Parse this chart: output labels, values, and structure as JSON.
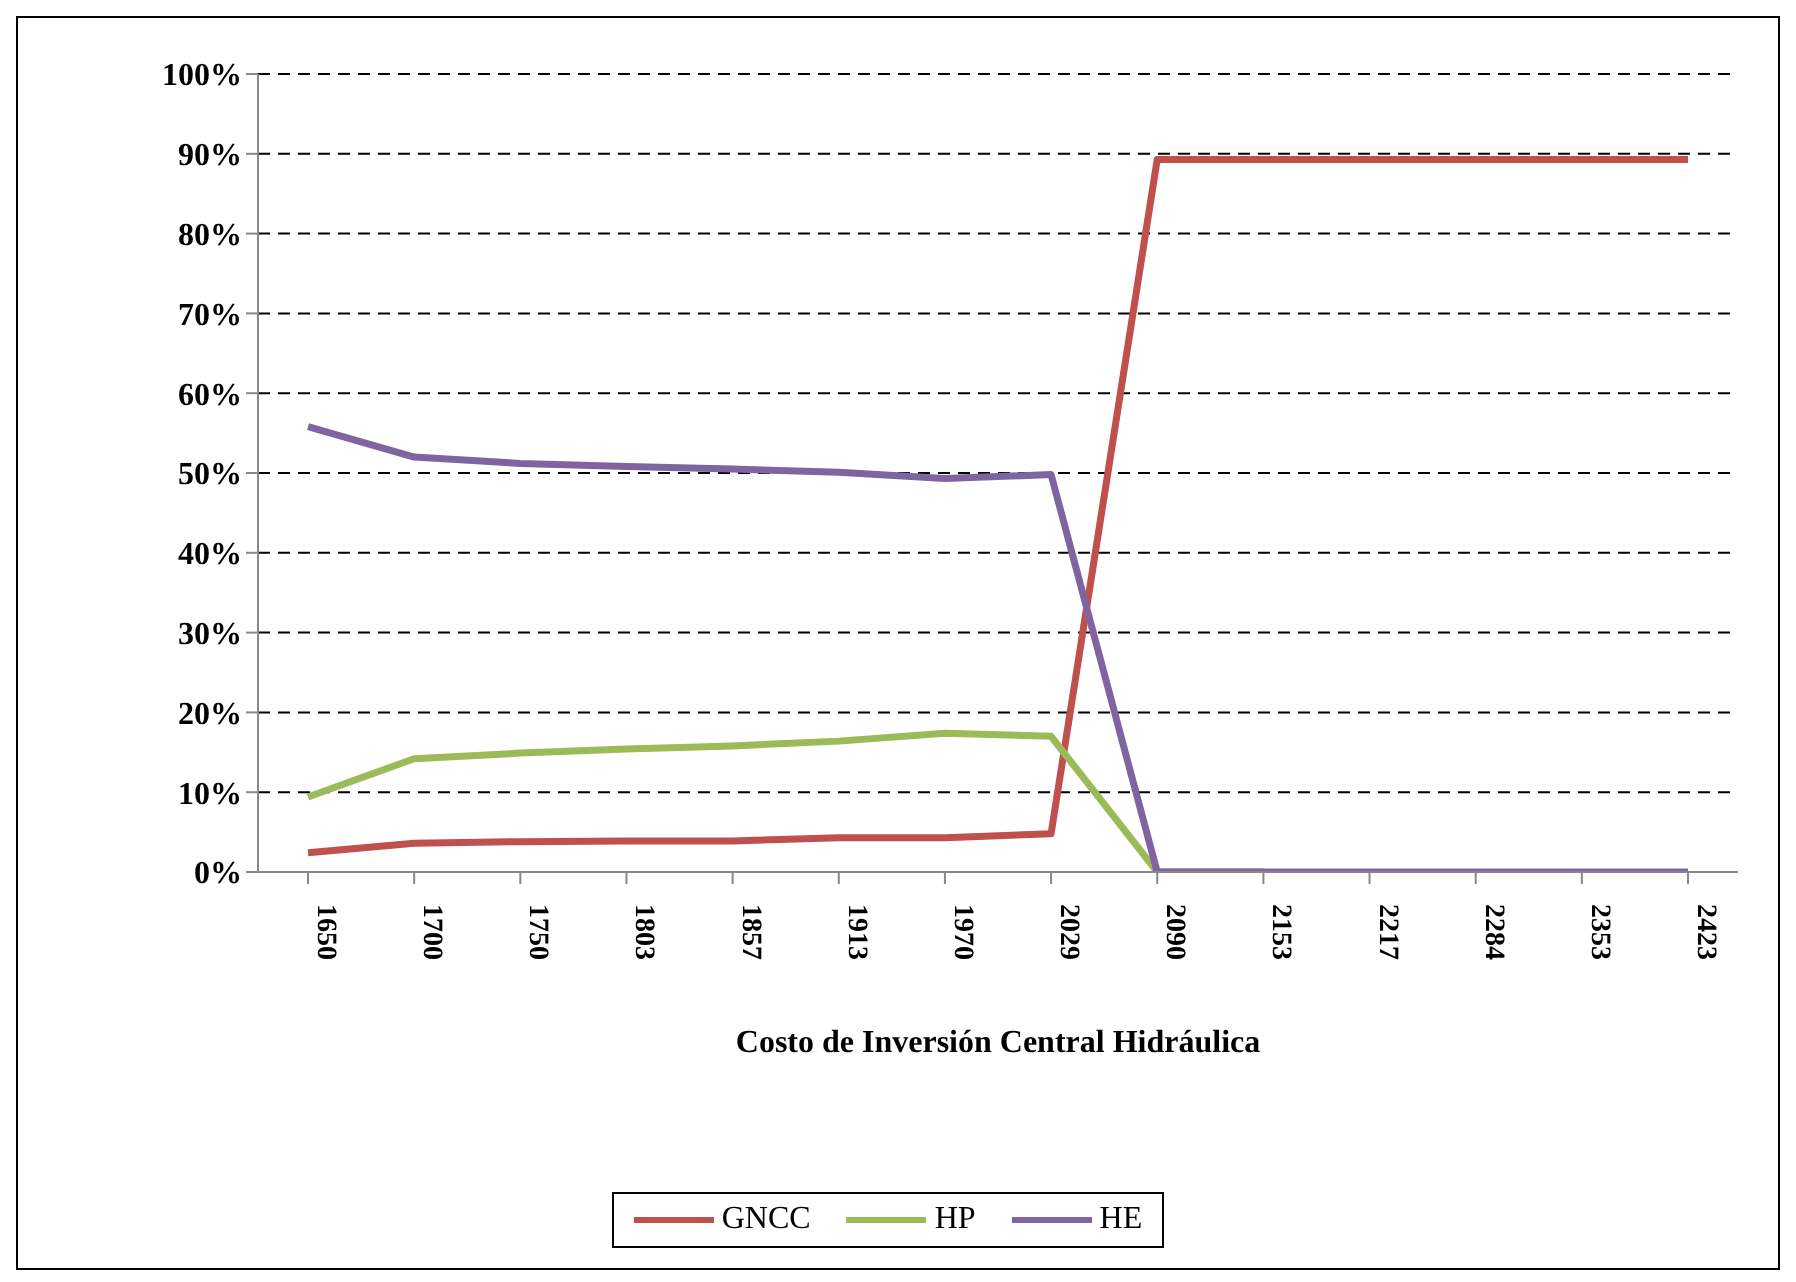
{
  "chart_data": {
    "type": "line",
    "xlabel": "Costo de Inversión Central Hidráulica",
    "categories": [
      "1650",
      "1700",
      "1750",
      "1803",
      "1857",
      "1913",
      "1970",
      "2029",
      "2090",
      "2153",
      "2217",
      "2284",
      "2353",
      "2423"
    ],
    "series": [
      {
        "name": "GNCC",
        "color": "#c0504d",
        "values": [
          2.4,
          3.6,
          3.8,
          3.9,
          3.9,
          4.3,
          4.3,
          4.8,
          89.3,
          89.3,
          89.3,
          89.3,
          89.3,
          89.3
        ]
      },
      {
        "name": "HP",
        "color": "#9bbb59",
        "values": [
          9.4,
          14.2,
          14.9,
          15.4,
          15.8,
          16.4,
          17.4,
          17.0,
          0,
          0,
          null,
          null,
          null,
          null
        ]
      },
      {
        "name": "HE",
        "color": "#8064a2",
        "values": [
          55.8,
          52.0,
          51.2,
          50.8,
          50.5,
          50.1,
          49.3,
          49.8,
          0,
          0,
          0,
          0,
          0,
          0
        ]
      }
    ],
    "ylim": [
      0,
      100
    ],
    "yticks": [
      {
        "value": 0,
        "label": "0%"
      },
      {
        "value": 10,
        "label": "10%"
      },
      {
        "value": 20,
        "label": "20%"
      },
      {
        "value": 30,
        "label": "30%"
      },
      {
        "value": 40,
        "label": "40%"
      },
      {
        "value": 50,
        "label": "50%"
      },
      {
        "value": 60,
        "label": "60%"
      },
      {
        "value": 70,
        "label": "70%"
      },
      {
        "value": 80,
        "label": "80%"
      },
      {
        "value": 90,
        "label": "90%"
      },
      {
        "value": 100,
        "label": "100%"
      }
    ],
    "grid": "y",
    "legend": "bottom",
    "marker": "none",
    "line_style": "solid"
  }
}
